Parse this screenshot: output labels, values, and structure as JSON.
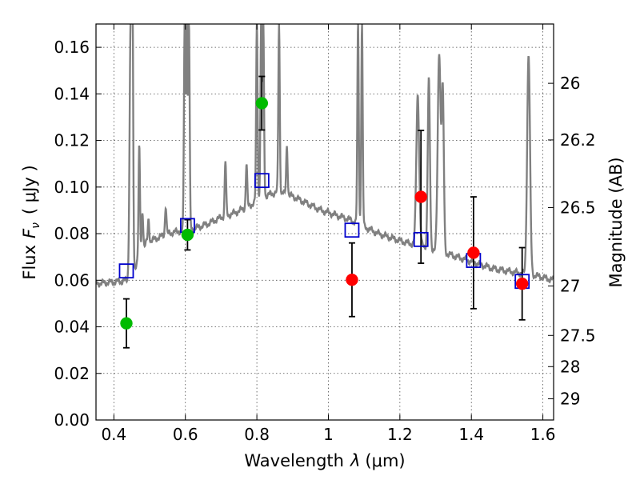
{
  "chart_data": {
    "type": "scatter",
    "xlabel": "Wavelength  λ (μm)",
    "ylabel": "Flux  F_ν  ( μJy )",
    "ylabel_parts": [
      "Flux",
      "F",
      "ν",
      "( μJy )"
    ],
    "xlabel_parts": [
      "Wavelength",
      "λ",
      "(μm)"
    ],
    "y2label": "Magnitude (AB)",
    "xlim": [
      0.35,
      1.63
    ],
    "ylim": [
      0.0,
      0.17
    ],
    "grid": true,
    "x_ticks": [
      {
        "value": 0.4,
        "label": "0.4"
      },
      {
        "value": 0.6,
        "label": "0.6"
      },
      {
        "value": 0.8,
        "label": "0.8"
      },
      {
        "value": 1.0,
        "label": "1"
      },
      {
        "value": 1.2,
        "label": "1.2"
      },
      {
        "value": 1.4,
        "label": "1.4"
      },
      {
        "value": 1.6,
        "label": "1.6"
      }
    ],
    "y_ticks": [
      {
        "value": 0.0,
        "label": "0.00"
      },
      {
        "value": 0.02,
        "label": "0.02"
      },
      {
        "value": 0.04,
        "label": "0.04"
      },
      {
        "value": 0.06,
        "label": "0.06"
      },
      {
        "value": 0.08,
        "label": "0.08"
      },
      {
        "value": 0.1,
        "label": "0.10"
      },
      {
        "value": 0.12,
        "label": "0.12"
      },
      {
        "value": 0.14,
        "label": "0.14"
      },
      {
        "value": 0.16,
        "label": "0.16"
      }
    ],
    "y2_ticks": [
      {
        "value": 26,
        "label": "26"
      },
      {
        "value": 26.2,
        "label": "26.2"
      },
      {
        "value": 26.5,
        "label": "26.5"
      },
      {
        "value": 27,
        "label": "27"
      },
      {
        "value": 27.5,
        "label": "27.5"
      },
      {
        "value": 28,
        "label": "28"
      },
      {
        "value": 29,
        "label": "29"
      }
    ],
    "colors": {
      "green": "#00bb00",
      "red": "#ff0000",
      "model_box": "#0000cc",
      "sed": "#808080",
      "errorbar": "#000000"
    },
    "series": [
      {
        "marker": "circle",
        "color": "#00bb00",
        "points": [
          {
            "x": 0.435,
            "y": 0.0415,
            "err": 0.0105
          },
          {
            "x": 0.606,
            "y": 0.0795,
            "err": 0.0065
          },
          {
            "x": 0.814,
            "y": 0.136,
            "err": 0.0115
          }
        ]
      },
      {
        "marker": "circle",
        "color": "#ff0000",
        "points": [
          {
            "x": 1.066,
            "y": 0.0602,
            "err": 0.0158
          },
          {
            "x": 1.259,
            "y": 0.0958,
            "err": 0.0285
          },
          {
            "x": 1.406,
            "y": 0.0718,
            "err": 0.024
          },
          {
            "x": 1.542,
            "y": 0.0585,
            "err": 0.0155
          }
        ]
      },
      {
        "marker": "open-square",
        "color": "#0000cc",
        "points": [
          {
            "x": 0.435,
            "y": 0.064
          },
          {
            "x": 0.606,
            "y": 0.0835
          },
          {
            "x": 0.814,
            "y": 0.1028
          },
          {
            "x": 1.066,
            "y": 0.0815
          },
          {
            "x": 1.259,
            "y": 0.0775
          },
          {
            "x": 1.406,
            "y": 0.0685
          },
          {
            "x": 1.542,
            "y": 0.0595
          }
        ]
      },
      {
        "marker": "line",
        "color": "#808080",
        "continuum": [
          [
            0.35,
            0.0585
          ],
          [
            0.38,
            0.059
          ],
          [
            0.42,
            0.0595
          ],
          [
            0.44,
            0.06
          ],
          [
            0.455,
            0.064
          ],
          [
            0.47,
            0.07
          ],
          [
            0.49,
            0.076
          ],
          [
            0.52,
            0.078
          ],
          [
            0.55,
            0.08
          ],
          [
            0.58,
            0.081
          ],
          [
            0.62,
            0.082
          ],
          [
            0.66,
            0.084
          ],
          [
            0.7,
            0.087
          ],
          [
            0.74,
            0.089
          ],
          [
            0.78,
            0.092
          ],
          [
            0.82,
            0.096
          ],
          [
            0.86,
            0.098
          ],
          [
            0.9,
            0.096
          ],
          [
            0.94,
            0.093
          ],
          [
            0.98,
            0.09
          ],
          [
            1.02,
            0.088
          ],
          [
            1.06,
            0.086
          ],
          [
            1.1,
            0.083
          ],
          [
            1.14,
            0.08
          ],
          [
            1.18,
            0.078
          ],
          [
            1.22,
            0.076
          ],
          [
            1.26,
            0.075
          ],
          [
            1.3,
            0.073
          ],
          [
            1.34,
            0.071
          ],
          [
            1.38,
            0.069
          ],
          [
            1.42,
            0.067
          ],
          [
            1.46,
            0.065
          ],
          [
            1.5,
            0.064
          ],
          [
            1.54,
            0.063
          ],
          [
            1.58,
            0.062
          ],
          [
            1.63,
            0.06
          ]
        ],
        "lines": [
          {
            "x": 0.447,
            "peak": 0.17,
            "w": 0.003
          },
          {
            "x": 0.452,
            "peak": 0.17,
            "w": 0.002
          },
          {
            "x": 0.471,
            "peak": 0.117,
            "w": 0.002
          },
          {
            "x": 0.48,
            "peak": 0.09,
            "w": 0.002
          },
          {
            "x": 0.497,
            "peak": 0.086,
            "w": 0.002
          },
          {
            "x": 0.545,
            "peak": 0.092,
            "w": 0.002
          },
          {
            "x": 0.598,
            "peak": 0.17,
            "w": 0.002
          },
          {
            "x": 0.604,
            "peak": 0.17,
            "w": 0.002
          },
          {
            "x": 0.61,
            "peak": 0.17,
            "w": 0.002
          },
          {
            "x": 0.712,
            "peak": 0.111,
            "w": 0.002
          },
          {
            "x": 0.771,
            "peak": 0.11,
            "w": 0.002
          },
          {
            "x": 0.8,
            "peak": 0.17,
            "w": 0.002
          },
          {
            "x": 0.812,
            "peak": 0.17,
            "w": 0.002
          },
          {
            "x": 0.818,
            "peak": 0.17,
            "w": 0.002
          },
          {
            "x": 0.862,
            "peak": 0.17,
            "w": 0.002
          },
          {
            "x": 0.884,
            "peak": 0.118,
            "w": 0.002
          },
          {
            "x": 1.083,
            "peak": 0.17,
            "w": 0.002
          },
          {
            "x": 1.094,
            "peak": 0.17,
            "w": 0.002
          },
          {
            "x": 1.25,
            "peak": 0.14,
            "w": 0.004
          },
          {
            "x": 1.281,
            "peak": 0.146,
            "w": 0.003
          },
          {
            "x": 1.31,
            "peak": 0.158,
            "w": 0.004
          },
          {
            "x": 1.32,
            "peak": 0.14,
            "w": 0.003
          },
          {
            "x": 1.56,
            "peak": 0.157,
            "w": 0.004
          }
        ]
      }
    ]
  }
}
